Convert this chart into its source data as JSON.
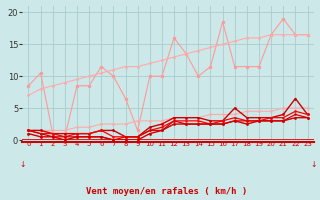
{
  "x": [
    0,
    1,
    2,
    3,
    4,
    5,
    6,
    7,
    8,
    9,
    10,
    11,
    12,
    13,
    14,
    15,
    16,
    17,
    18,
    19,
    20,
    21,
    22,
    23
  ],
  "series": [
    {
      "name": "rafales_jagged",
      "y": [
        8.5,
        10.5,
        1.0,
        0.5,
        8.5,
        8.5,
        11.5,
        10.0,
        6.5,
        1.5,
        10.0,
        10.0,
        16.0,
        13.5,
        10.0,
        11.5,
        18.5,
        11.5,
        11.5,
        11.5,
        16.5,
        19.0,
        16.5,
        16.5
      ],
      "color": "#ff9999",
      "lw": 0.8,
      "ms": 2.5
    },
    {
      "name": "trend_upper",
      "y": [
        7.0,
        8.0,
        8.5,
        9.0,
        9.5,
        10.0,
        10.5,
        11.0,
        11.5,
        11.5,
        12.0,
        12.5,
        13.0,
        13.5,
        14.0,
        14.5,
        15.0,
        15.5,
        16.0,
        16.0,
        16.5,
        16.5,
        16.5,
        16.5
      ],
      "color": "#ffaaaa",
      "lw": 0.8,
      "ms": 2.0
    },
    {
      "name": "trend_lower",
      "y": [
        1.5,
        1.5,
        1.5,
        1.5,
        2.0,
        2.0,
        2.5,
        2.5,
        2.5,
        3.0,
        3.0,
        3.0,
        3.5,
        3.5,
        3.5,
        4.0,
        4.0,
        4.0,
        4.5,
        4.5,
        4.5,
        5.0,
        5.0,
        5.0
      ],
      "color": "#ffaaaa",
      "lw": 0.8,
      "ms": 2.0
    },
    {
      "name": "dark_top",
      "y": [
        1.5,
        1.5,
        1.0,
        1.0,
        1.0,
        1.0,
        1.5,
        1.5,
        0.5,
        0.5,
        2.0,
        2.5,
        3.5,
        3.5,
        3.5,
        3.0,
        3.0,
        5.0,
        3.5,
        3.5,
        3.5,
        4.0,
        6.5,
        4.0
      ],
      "color": "#cc0000",
      "lw": 1.0,
      "ms": 2.0
    },
    {
      "name": "dark_mid1",
      "y": [
        1.5,
        1.0,
        1.0,
        0.5,
        1.0,
        1.0,
        1.5,
        0.5,
        0.5,
        0.5,
        1.5,
        2.0,
        3.0,
        3.0,
        3.0,
        2.5,
        3.0,
        3.5,
        3.0,
        3.0,
        3.5,
        3.5,
        4.5,
        4.0
      ],
      "color": "#ff0000",
      "lw": 0.9,
      "ms": 1.8
    },
    {
      "name": "dark_mid2",
      "y": [
        1.5,
        1.0,
        0.5,
        0.5,
        0.5,
        0.5,
        0.5,
        0.0,
        0.5,
        0.5,
        1.5,
        1.5,
        3.0,
        2.5,
        2.5,
        2.5,
        2.5,
        3.0,
        3.0,
        3.0,
        3.0,
        3.0,
        4.0,
        3.5
      ],
      "color": "#dd0000",
      "lw": 0.9,
      "ms": 1.8
    },
    {
      "name": "dark_bot",
      "y": [
        1.0,
        0.5,
        0.5,
        0.0,
        0.5,
        0.5,
        0.5,
        0.0,
        0.0,
        0.0,
        1.0,
        1.5,
        2.5,
        2.5,
        2.5,
        2.5,
        2.5,
        3.0,
        2.5,
        3.0,
        3.0,
        3.0,
        3.5,
        3.5
      ],
      "color": "#cc0000",
      "lw": 1.0,
      "ms": 2.0
    }
  ],
  "xlabel": "Vent moyen/en rafales ( km/h )",
  "xlim": [
    -0.5,
    23.5
  ],
  "ylim": [
    0,
    21
  ],
  "yticks": [
    0,
    5,
    10,
    15,
    20
  ],
  "xticks": [
    0,
    1,
    2,
    3,
    4,
    5,
    6,
    7,
    8,
    9,
    10,
    11,
    12,
    13,
    14,
    15,
    16,
    17,
    18,
    19,
    20,
    21,
    22,
    23
  ],
  "bg_color": "#cce8e8",
  "grid_color": "#aacccc",
  "arrow_color": "#cc0000",
  "label_color": "#cc0000"
}
